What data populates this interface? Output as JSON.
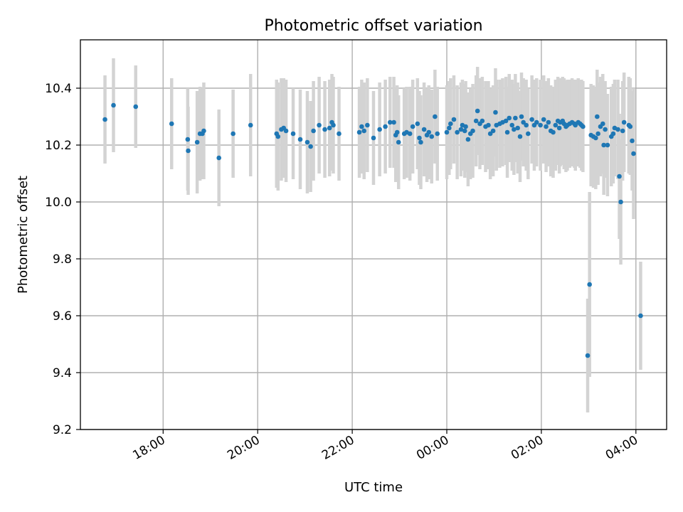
{
  "chart_data": {
    "type": "scatter",
    "title": "Photometric offset variation",
    "xlabel": "UTC time",
    "ylabel": "Photometric offset",
    "xlim_hours": [
      16.25,
      28.65
    ],
    "ylim": [
      9.2,
      10.57
    ],
    "grid": true,
    "x_ticks": [
      {
        "hour": 18,
        "label": "18:00"
      },
      {
        "hour": 20,
        "label": "20:00"
      },
      {
        "hour": 22,
        "label": "22:00"
      },
      {
        "hour": 24,
        "label": "00:00"
      },
      {
        "hour": 26,
        "label": "02:00"
      },
      {
        "hour": 28,
        "label": "04:00"
      }
    ],
    "y_ticks": [
      {
        "value": 9.2,
        "label": "9.2"
      },
      {
        "value": 9.4,
        "label": "9.4"
      },
      {
        "value": 9.6,
        "label": "9.6"
      },
      {
        "value": 9.8,
        "label": "9.8"
      },
      {
        "value": 10.0,
        "label": "10.0"
      },
      {
        "value": 10.2,
        "label": "10.2"
      },
      {
        "value": 10.4,
        "label": "10.4"
      }
    ],
    "series": [
      {
        "name": "offset",
        "marker_color": "#1f77b4",
        "error_color": "#d3d3d3",
        "columns": [
          "hour_utc",
          "offset",
          "error"
        ],
        "points": [
          [
            16.77,
            10.29,
            0.155
          ],
          [
            16.95,
            10.34,
            0.165
          ],
          [
            17.42,
            10.335,
            0.145
          ],
          [
            18.18,
            10.275,
            0.16
          ],
          [
            18.52,
            10.22,
            0.18
          ],
          [
            18.53,
            10.18,
            0.155
          ],
          [
            18.72,
            10.21,
            0.18
          ],
          [
            18.78,
            10.24,
            0.165
          ],
          [
            18.86,
            10.25,
            0.17
          ],
          [
            18.83,
            10.24,
            0.16
          ],
          [
            19.18,
            10.155,
            0.17
          ],
          [
            19.48,
            10.24,
            0.155
          ],
          [
            19.85,
            10.27,
            0.18
          ],
          [
            20.4,
            10.24,
            0.19
          ],
          [
            20.43,
            10.23,
            0.19
          ],
          [
            20.5,
            10.255,
            0.18
          ],
          [
            20.55,
            10.26,
            0.175
          ],
          [
            20.6,
            10.25,
            0.18
          ],
          [
            20.75,
            10.24,
            0.16
          ],
          [
            20.9,
            10.22,
            0.175
          ],
          [
            21.05,
            10.21,
            0.18
          ],
          [
            21.12,
            10.195,
            0.16
          ],
          [
            21.18,
            10.25,
            0.175
          ],
          [
            21.3,
            10.27,
            0.17
          ],
          [
            21.42,
            10.255,
            0.17
          ],
          [
            21.52,
            10.26,
            0.17
          ],
          [
            21.57,
            10.28,
            0.17
          ],
          [
            21.6,
            10.27,
            0.17
          ],
          [
            21.72,
            10.24,
            0.165
          ],
          [
            22.15,
            10.245,
            0.16
          ],
          [
            22.2,
            10.265,
            0.165
          ],
          [
            22.25,
            10.25,
            0.17
          ],
          [
            22.32,
            10.27,
            0.165
          ],
          [
            22.45,
            10.225,
            0.165
          ],
          [
            22.58,
            10.255,
            0.165
          ],
          [
            22.7,
            10.265,
            0.165
          ],
          [
            22.8,
            10.28,
            0.16
          ],
          [
            22.88,
            10.28,
            0.16
          ],
          [
            22.92,
            10.235,
            0.165
          ],
          [
            22.95,
            10.245,
            0.165
          ],
          [
            22.98,
            10.21,
            0.165
          ],
          [
            23.1,
            10.24,
            0.16
          ],
          [
            23.15,
            10.245,
            0.16
          ],
          [
            23.22,
            10.24,
            0.165
          ],
          [
            23.28,
            10.265,
            0.165
          ],
          [
            23.38,
            10.275,
            0.16
          ],
          [
            23.42,
            10.225,
            0.165
          ],
          [
            23.45,
            10.21,
            0.165
          ],
          [
            23.52,
            10.255,
            0.165
          ],
          [
            23.58,
            10.235,
            0.165
          ],
          [
            23.62,
            10.245,
            0.165
          ],
          [
            23.68,
            10.23,
            0.165
          ],
          [
            23.75,
            10.3,
            0.165
          ],
          [
            23.8,
            10.24,
            0.165
          ],
          [
            24.0,
            10.245,
            0.165
          ],
          [
            24.05,
            10.26,
            0.165
          ],
          [
            24.08,
            10.275,
            0.16
          ],
          [
            24.15,
            10.29,
            0.155
          ],
          [
            24.22,
            10.245,
            0.165
          ],
          [
            24.3,
            10.255,
            0.165
          ],
          [
            24.33,
            10.27,
            0.16
          ],
          [
            24.38,
            10.25,
            0.165
          ],
          [
            24.4,
            10.265,
            0.16
          ],
          [
            24.45,
            10.22,
            0.165
          ],
          [
            24.5,
            10.24,
            0.16
          ],
          [
            24.55,
            10.25,
            0.165
          ],
          [
            24.62,
            10.285,
            0.16
          ],
          [
            24.65,
            10.32,
            0.155
          ],
          [
            24.7,
            10.275,
            0.16
          ],
          [
            24.75,
            10.285,
            0.155
          ],
          [
            24.82,
            10.265,
            0.16
          ],
          [
            24.88,
            10.27,
            0.155
          ],
          [
            24.92,
            10.24,
            0.16
          ],
          [
            24.98,
            10.25,
            0.16
          ],
          [
            25.03,
            10.315,
            0.155
          ],
          [
            25.05,
            10.27,
            0.16
          ],
          [
            25.12,
            10.275,
            0.155
          ],
          [
            25.18,
            10.28,
            0.155
          ],
          [
            25.25,
            10.285,
            0.155
          ],
          [
            25.28,
            10.245,
            0.16
          ],
          [
            25.32,
            10.295,
            0.155
          ],
          [
            25.38,
            10.27,
            0.16
          ],
          [
            25.42,
            10.255,
            0.16
          ],
          [
            25.45,
            10.295,
            0.155
          ],
          [
            25.5,
            10.26,
            0.16
          ],
          [
            25.55,
            10.23,
            0.16
          ],
          [
            25.58,
            10.3,
            0.155
          ],
          [
            25.62,
            10.28,
            0.155
          ],
          [
            25.68,
            10.27,
            0.16
          ],
          [
            25.72,
            10.24,
            0.16
          ],
          [
            25.8,
            10.29,
            0.155
          ],
          [
            25.85,
            10.27,
            0.16
          ],
          [
            25.9,
            10.28,
            0.155
          ],
          [
            25.98,
            10.27,
            0.16
          ],
          [
            26.05,
            10.29,
            0.155
          ],
          [
            26.1,
            10.265,
            0.16
          ],
          [
            26.15,
            10.28,
            0.155
          ],
          [
            26.2,
            10.25,
            0.16
          ],
          [
            26.25,
            10.245,
            0.16
          ],
          [
            26.3,
            10.27,
            0.16
          ],
          [
            26.35,
            10.285,
            0.155
          ],
          [
            26.38,
            10.26,
            0.16
          ],
          [
            26.4,
            10.28,
            0.155
          ],
          [
            26.45,
            10.285,
            0.155
          ],
          [
            26.48,
            10.275,
            0.16
          ],
          [
            26.52,
            10.265,
            0.16
          ],
          [
            26.55,
            10.27,
            0.16
          ],
          [
            26.6,
            10.275,
            0.155
          ],
          [
            26.65,
            10.28,
            0.155
          ],
          [
            26.7,
            10.275,
            0.155
          ],
          [
            26.72,
            10.27,
            0.16
          ],
          [
            26.78,
            10.28,
            0.155
          ],
          [
            26.82,
            10.275,
            0.155
          ],
          [
            26.85,
            10.27,
            0.16
          ],
          [
            26.88,
            10.265,
            0.16
          ],
          [
            26.98,
            9.46,
            0.2
          ],
          [
            27.02,
            9.71,
            0.325
          ],
          [
            27.05,
            10.235,
            0.18
          ],
          [
            27.1,
            10.23,
            0.18
          ],
          [
            27.15,
            10.225,
            0.18
          ],
          [
            27.18,
            10.3,
            0.165
          ],
          [
            27.2,
            10.24,
            0.18
          ],
          [
            27.25,
            10.265,
            0.175
          ],
          [
            27.3,
            10.275,
            0.175
          ],
          [
            27.32,
            10.2,
            0.175
          ],
          [
            27.35,
            10.255,
            0.17
          ],
          [
            27.4,
            10.2,
            0.18
          ],
          [
            27.48,
            10.23,
            0.175
          ],
          [
            27.52,
            10.24,
            0.175
          ],
          [
            27.55,
            10.26,
            0.17
          ],
          [
            27.62,
            10.255,
            0.175
          ],
          [
            27.65,
            10.09,
            0.22
          ],
          [
            27.68,
            10.0,
            0.22
          ],
          [
            27.72,
            10.25,
            0.175
          ],
          [
            27.75,
            10.28,
            0.175
          ],
          [
            27.85,
            10.27,
            0.17
          ],
          [
            27.88,
            10.265,
            0.17
          ],
          [
            27.92,
            10.215,
            0.175
          ],
          [
            27.95,
            10.17,
            0.23
          ],
          [
            28.1,
            9.6,
            0.19
          ]
        ]
      }
    ]
  }
}
